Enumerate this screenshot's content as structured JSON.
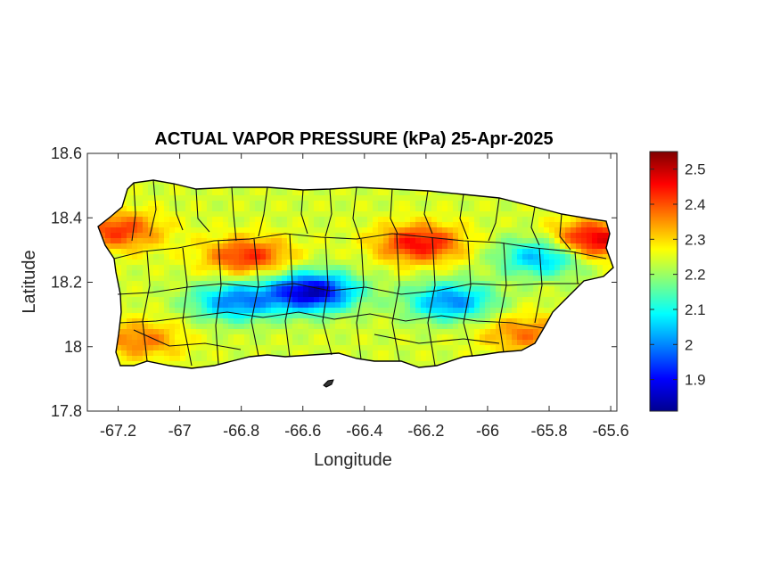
{
  "chart_data": {
    "type": "heatmap",
    "title": "ACTUAL VAPOR PRESSURE (kPa) 25-Apr-2025",
    "xlabel": "Longitude",
    "ylabel": "Latitude",
    "xlim": [
      -67.3,
      -65.58
    ],
    "ylim": [
      17.8,
      18.6
    ],
    "x_ticks": [
      -67.2,
      -67,
      -66.8,
      -66.6,
      -66.4,
      -66.2,
      -66,
      -65.8,
      -65.6
    ],
    "x_tick_labels": [
      "-67.2",
      "-67",
      "-66.8",
      "-66.6",
      "-66.4",
      "-66.2",
      "-66",
      "-65.8",
      "-65.6"
    ],
    "y_ticks": [
      17.8,
      18,
      18.2,
      18.4,
      18.6
    ],
    "y_tick_labels": [
      "17.8",
      "18",
      "18.2",
      "18.4",
      "18.6"
    ],
    "colorbar": {
      "colormap": "jet",
      "range": [
        1.81,
        2.55
      ],
      "ticks": [
        1.9,
        2,
        2.1,
        2.2,
        2.3,
        2.4,
        2.5
      ],
      "tick_labels": [
        "1.9",
        "2",
        "2.1",
        "2.2",
        "2.3",
        "2.4",
        "2.5"
      ]
    },
    "region": "Puerto Rico",
    "field_description": {
      "base_value": 2.24,
      "features": [
        {
          "area": "central mountain ridge near -66.6",
          "lon": -66.57,
          "lat": 18.17,
          "value": 1.85
        },
        {
          "area": "central mountains near -66.8",
          "lon": -66.82,
          "lat": 18.14,
          "value": 2.0
        },
        {
          "area": "east-central interior",
          "lon": -66.12,
          "lat": 18.14,
          "value": 2.0
        },
        {
          "area": "El Yunque area",
          "lon": -65.82,
          "lat": 18.28,
          "value": 2.02
        },
        {
          "area": "northwest coast",
          "lon": -67.2,
          "lat": 18.36,
          "value": 2.42
        },
        {
          "area": "north-central band",
          "lon": -66.78,
          "lat": 18.28,
          "value": 2.43
        },
        {
          "area": "north band near -66.2",
          "lon": -66.22,
          "lat": 18.32,
          "value": 2.46
        },
        {
          "area": "northeast coast",
          "lon": -65.66,
          "lat": 18.33,
          "value": 2.5
        },
        {
          "area": "southeast coast",
          "lon": -65.88,
          "lat": 18.04,
          "value": 2.37
        },
        {
          "area": "southwest coast",
          "lon": -67.13,
          "lat": 18.02,
          "value": 2.37
        }
      ]
    },
    "grid": false,
    "legend": "none"
  }
}
